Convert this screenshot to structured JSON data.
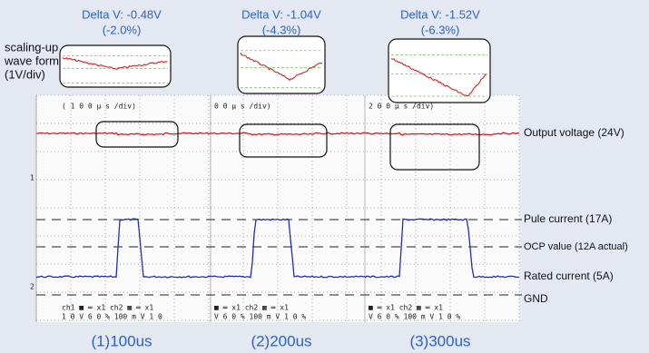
{
  "left_label": [
    "scaling-up",
    "wave form",
    "(1V/div)"
  ],
  "panels": [
    {
      "delta": "Delta V: -0.48V",
      "percent": "(-2.0%)",
      "timebase": "( 1 0 0 μ s /div)",
      "footer": [
        "ch1 ■ ═ x1     ch2 ▦ ═ x1",
        "1 0 V   6 0 %   100 m V   1 0"
      ],
      "caption": "(1)100us"
    },
    {
      "delta": "Delta V: -1.04V",
      "percent": "(-4.3%)",
      "timebase": "0 0 μ s /div)",
      "footer": [
        "■ ═ x1     ch2 ▦ ═ x1",
        "V   6 0 %   100 m V   1 0 %"
      ],
      "caption": "(2)200us"
    },
    {
      "delta": "Delta V: -1.52V",
      "percent": "(-6.3%)",
      "timebase": "2 0 0 μ s /div)",
      "footer": [
        "■ ═ x1     ch2 ▦ ═ x1",
        "V   6 0 %   100 m V   1 0 %"
      ],
      "caption": "(3)300us"
    }
  ],
  "channel_markers": [
    "1",
    "2"
  ],
  "right_labels": [
    "Output voltage (24V)",
    "Pule current (17A)",
    "OCP value (12A actual)",
    "Rated current (5A)",
    "GND"
  ]
}
